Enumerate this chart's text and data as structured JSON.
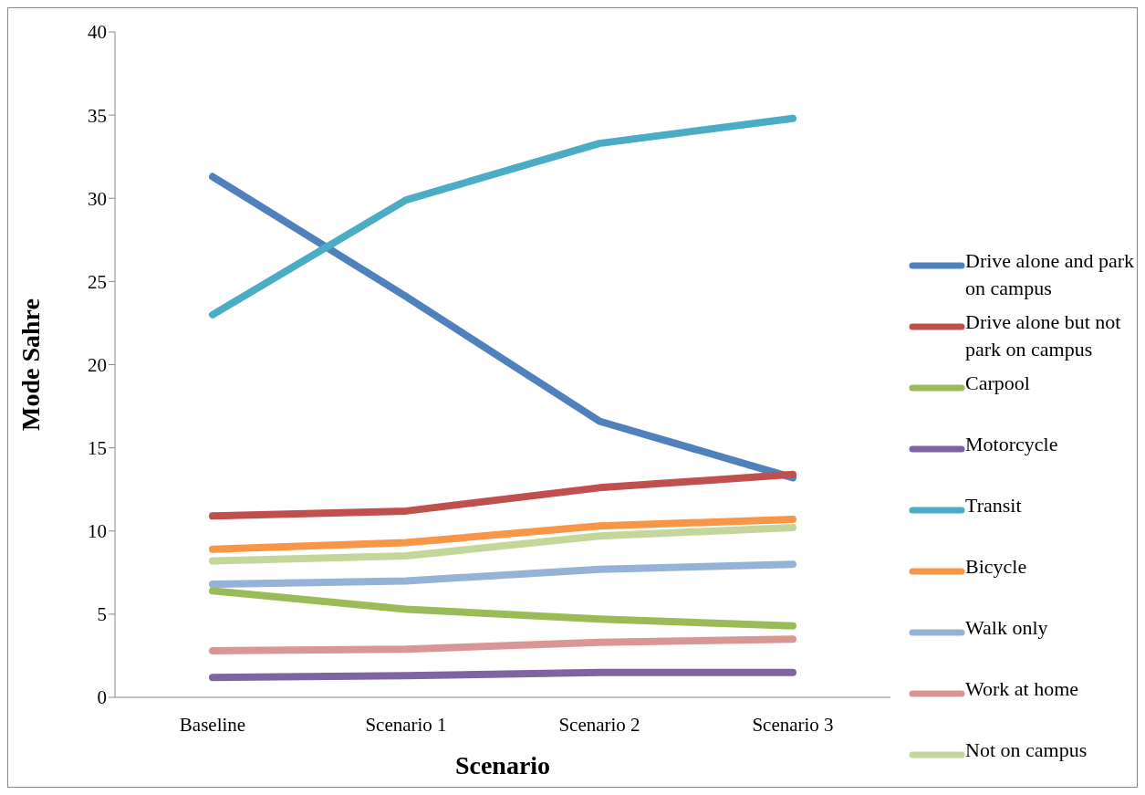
{
  "chart_data": {
    "type": "line",
    "xlabel": "Scenario",
    "ylabel": "Mode Sahre",
    "categories": [
      "Baseline",
      "Scenario 1",
      "Scenario 2",
      "Scenario 3"
    ],
    "series": [
      {
        "name": "Drive alone and park on campus",
        "color": "#4f81bd",
        "values": [
          31.3,
          24.1,
          16.6,
          13.2
        ]
      },
      {
        "name": "Drive alone but not park on campus",
        "color": "#c0504d",
        "values": [
          10.9,
          11.2,
          12.6,
          13.4
        ]
      },
      {
        "name": "Carpool",
        "color": "#9bbb59",
        "values": [
          6.4,
          5.3,
          4.7,
          4.3
        ]
      },
      {
        "name": "Motorcycle",
        "color": "#8064a2",
        "values": [
          1.2,
          1.3,
          1.5,
          1.5
        ]
      },
      {
        "name": "Transit",
        "color": "#4bacc6",
        "values": [
          23.0,
          29.9,
          33.3,
          34.8
        ]
      },
      {
        "name": "Bicycle",
        "color": "#f79646",
        "values": [
          8.9,
          9.3,
          10.3,
          10.7
        ]
      },
      {
        "name": "Walk only",
        "color": "#95b3d7",
        "values": [
          6.8,
          7.0,
          7.7,
          8.0
        ]
      },
      {
        "name": "Work at home",
        "color": "#da9694",
        "values": [
          2.8,
          2.9,
          3.3,
          3.5
        ]
      },
      {
        "name": "Not on campus",
        "color": "#c4d79b",
        "values": [
          8.2,
          8.5,
          9.7,
          10.2
        ]
      }
    ],
    "ylim": [
      0,
      40
    ],
    "yticks": [
      0,
      5,
      10,
      15,
      20,
      25,
      30,
      35,
      40
    ],
    "grid": false,
    "legend": "right",
    "marker": "none",
    "line_style": "solid"
  }
}
